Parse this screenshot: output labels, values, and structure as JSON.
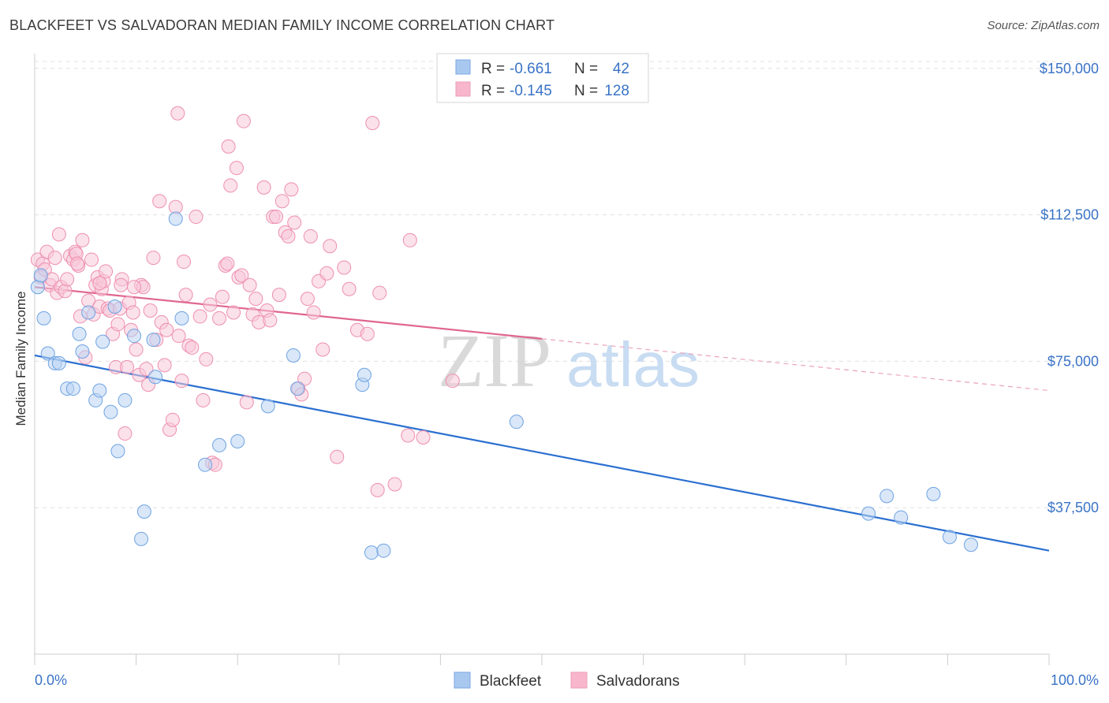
{
  "title": "BLACKFEET VS SALVADORAN MEDIAN FAMILY INCOME CORRELATION CHART",
  "source": "Source: ZipAtlas.com",
  "watermark": {
    "zip": "ZIP",
    "atlas": "atlas"
  },
  "legend": {
    "r_label": "R =",
    "n_label": "N =",
    "rows": [
      {
        "r": "-0.661",
        "n": "42",
        "color": "#a9c8f0"
      },
      {
        "r": "-0.145",
        "n": "128",
        "color": "#f7b6cb"
      }
    ]
  },
  "bottom_legend": [
    {
      "label": "Blackfeet",
      "color": "#a9c8f0"
    },
    {
      "label": "Salvadorans",
      "color": "#f7b6cb"
    }
  ],
  "chart_data": {
    "type": "scatter",
    "title": "BLACKFEET VS SALVADORAN MEDIAN FAMILY INCOME CORRELATION CHART",
    "xlabel": "",
    "ylabel": "Median Family Income",
    "xlim": [
      0,
      100
    ],
    "ylim": [
      0,
      155000
    ],
    "x_tick_labels": [
      "0.0%",
      "100.0%"
    ],
    "y_ticks": [
      37500,
      75000,
      112500,
      150000
    ],
    "y_tick_labels": [
      "$37,500",
      "$75,000",
      "$112,500",
      "$150,000"
    ],
    "grid": true,
    "legend_position": "top-center",
    "series": [
      {
        "name": "Blackfeet",
        "color": "#6fa3e3",
        "fill": "#b9d3f3",
        "trend": {
          "x": [
            0,
            100
          ],
          "y": [
            76500,
            26500
          ],
          "dashed_from": null
        },
        "points": [
          [
            0.3,
            94000
          ],
          [
            0.6,
            97000
          ],
          [
            0.9,
            86000
          ],
          [
            1.3,
            77000
          ],
          [
            2.0,
            74500
          ],
          [
            2.4,
            74500
          ],
          [
            3.2,
            68000
          ],
          [
            3.8,
            68000
          ],
          [
            4.4,
            82000
          ],
          [
            4.7,
            77500
          ],
          [
            5.3,
            87500
          ],
          [
            6.0,
            65000
          ],
          [
            6.4,
            67500
          ],
          [
            6.7,
            80000
          ],
          [
            7.5,
            62000
          ],
          [
            7.9,
            89000
          ],
          [
            8.2,
            52000
          ],
          [
            8.9,
            65000
          ],
          [
            9.8,
            81500
          ],
          [
            10.5,
            29500
          ],
          [
            10.8,
            36500
          ],
          [
            11.7,
            80500
          ],
          [
            11.9,
            71000
          ],
          [
            13.9,
            111500
          ],
          [
            14.5,
            86000
          ],
          [
            16.8,
            48500
          ],
          [
            18.2,
            53500
          ],
          [
            20.0,
            54500
          ],
          [
            23.0,
            63500
          ],
          [
            25.5,
            76500
          ],
          [
            25.9,
            68000
          ],
          [
            32.3,
            69000
          ],
          [
            32.5,
            71500
          ],
          [
            33.2,
            26000
          ],
          [
            34.4,
            26500
          ],
          [
            47.5,
            59500
          ],
          [
            82.2,
            36000
          ],
          [
            84.0,
            40500
          ],
          [
            85.4,
            35000
          ],
          [
            88.6,
            41000
          ],
          [
            90.2,
            30000
          ],
          [
            92.3,
            28000
          ]
        ]
      },
      {
        "name": "Salvadorans",
        "color": "#ee8fb0",
        "fill": "#f8c9d8",
        "trend": {
          "x": [
            0,
            100
          ],
          "y": [
            94000,
            67500
          ],
          "solid_until": 50
        },
        "points": [
          [
            0.3,
            101000
          ],
          [
            0.6,
            96500
          ],
          [
            0.8,
            100000
          ],
          [
            1.0,
            98500
          ],
          [
            1.2,
            103000
          ],
          [
            1.5,
            94500
          ],
          [
            1.7,
            96000
          ],
          [
            2.0,
            101500
          ],
          [
            2.2,
            92500
          ],
          [
            2.4,
            107500
          ],
          [
            2.6,
            94000
          ],
          [
            3.0,
            93000
          ],
          [
            3.2,
            96000
          ],
          [
            3.5,
            102000
          ],
          [
            3.8,
            101000
          ],
          [
            4.0,
            103000
          ],
          [
            4.1,
            102500
          ],
          [
            4.3,
            99500
          ],
          [
            4.5,
            86500
          ],
          [
            4.7,
            106000
          ],
          [
            5.0,
            76000
          ],
          [
            5.3,
            90500
          ],
          [
            5.6,
            101000
          ],
          [
            5.8,
            87000
          ],
          [
            6.0,
            94500
          ],
          [
            6.2,
            96500
          ],
          [
            6.4,
            89000
          ],
          [
            6.6,
            93500
          ],
          [
            6.8,
            95500
          ],
          [
            7.0,
            98000
          ],
          [
            7.2,
            88500
          ],
          [
            7.4,
            88000
          ],
          [
            7.7,
            82000
          ],
          [
            8.0,
            73500
          ],
          [
            8.2,
            84500
          ],
          [
            8.4,
            88500
          ],
          [
            8.6,
            96000
          ],
          [
            8.9,
            56500
          ],
          [
            9.1,
            73500
          ],
          [
            9.3,
            90000
          ],
          [
            9.5,
            83000
          ],
          [
            9.7,
            87500
          ],
          [
            10.0,
            78000
          ],
          [
            10.3,
            71500
          ],
          [
            10.5,
            94500
          ],
          [
            10.7,
            94000
          ],
          [
            11.0,
            73000
          ],
          [
            11.2,
            69000
          ],
          [
            11.4,
            88000
          ],
          [
            11.7,
            101500
          ],
          [
            12.0,
            80500
          ],
          [
            12.3,
            116000
          ],
          [
            12.5,
            85000
          ],
          [
            12.8,
            74000
          ],
          [
            13.0,
            83000
          ],
          [
            13.3,
            57500
          ],
          [
            13.6,
            60000
          ],
          [
            13.9,
            114500
          ],
          [
            14.2,
            81500
          ],
          [
            14.5,
            70000
          ],
          [
            14.7,
            100500
          ],
          [
            14.9,
            92000
          ],
          [
            15.2,
            79000
          ],
          [
            15.5,
            78500
          ],
          [
            15.9,
            112000
          ],
          [
            16.3,
            86500
          ],
          [
            16.6,
            65000
          ],
          [
            16.9,
            75500
          ],
          [
            17.3,
            89500
          ],
          [
            17.5,
            49000
          ],
          [
            17.8,
            48500
          ],
          [
            18.2,
            86000
          ],
          [
            18.5,
            91500
          ],
          [
            18.8,
            99500
          ],
          [
            19.0,
            100000
          ],
          [
            19.3,
            120000
          ],
          [
            19.6,
            87500
          ],
          [
            19.9,
            124500
          ],
          [
            20.1,
            96500
          ],
          [
            20.4,
            97000
          ],
          [
            20.6,
            136500
          ],
          [
            20.9,
            64500
          ],
          [
            21.2,
            94500
          ],
          [
            21.5,
            87000
          ],
          [
            21.8,
            91000
          ],
          [
            22.1,
            85000
          ],
          [
            22.6,
            119500
          ],
          [
            22.9,
            88000
          ],
          [
            23.2,
            85500
          ],
          [
            23.5,
            112000
          ],
          [
            23.8,
            112000
          ],
          [
            24.1,
            92000
          ],
          [
            24.4,
            116000
          ],
          [
            24.7,
            108000
          ],
          [
            25.0,
            107000
          ],
          [
            25.3,
            119000
          ],
          [
            25.6,
            110500
          ],
          [
            26.0,
            68000
          ],
          [
            26.3,
            66500
          ],
          [
            26.6,
            70500
          ],
          [
            26.9,
            91000
          ],
          [
            27.2,
            107000
          ],
          [
            27.5,
            87500
          ],
          [
            28.0,
            95500
          ],
          [
            28.4,
            78000
          ],
          [
            28.8,
            97500
          ],
          [
            29.1,
            104500
          ],
          [
            29.8,
            50500
          ],
          [
            30.5,
            99000
          ],
          [
            31.0,
            93500
          ],
          [
            31.8,
            83000
          ],
          [
            32.8,
            82000
          ],
          [
            33.3,
            136000
          ],
          [
            33.8,
            42000
          ],
          [
            34.0,
            92500
          ],
          [
            35.5,
            43500
          ],
          [
            36.8,
            56000
          ],
          [
            37.0,
            106000
          ],
          [
            38.3,
            55500
          ],
          [
            41.2,
            70000
          ],
          [
            14.1,
            138500
          ],
          [
            19.1,
            130000
          ],
          [
            4.2,
            100000
          ],
          [
            6.4,
            95000
          ],
          [
            8.5,
            94500
          ],
          [
            9.8,
            94000
          ]
        ]
      }
    ]
  }
}
